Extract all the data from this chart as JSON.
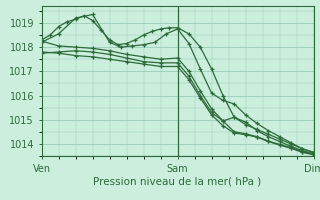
{
  "title": "Pression niveau de la mer( hPa )",
  "bg_color": "#cceedd",
  "plot_bg_color": "#cceedd",
  "grid_color": "#99ccbb",
  "line_color": "#2d6b3a",
  "marker_color": "#2d6b3a",
  "spine_color": "#2d6b3a",
  "tick_color": "#2d6b3a",
  "label_color": "#2d6b3a",
  "ylim": [
    1013.5,
    1019.7
  ],
  "yticks": [
    1014,
    1015,
    1016,
    1017,
    1018,
    1019
  ],
  "xtick_labels": [
    "Ven",
    "Sam",
    "Dim"
  ],
  "xtick_positions": [
    0,
    48,
    96
  ],
  "x_max": 96,
  "series": [
    [
      0,
      1018.3,
      3,
      1018.5,
      6,
      1018.85,
      9,
      1019.05,
      12,
      1019.15,
      15,
      1019.3,
      18,
      1019.1,
      21,
      1018.7,
      24,
      1018.3,
      27,
      1018.1,
      30,
      1018.15,
      33,
      1018.3,
      36,
      1018.5,
      39,
      1018.65,
      42,
      1018.75,
      45,
      1018.8,
      48,
      1018.8,
      52,
      1018.55,
      56,
      1018.0,
      60,
      1017.1,
      64,
      1016.0,
      68,
      1015.1,
      72,
      1014.8,
      76,
      1014.6,
      80,
      1014.4,
      84,
      1014.2,
      88,
      1014.0,
      92,
      1013.8,
      96,
      1013.65
    ],
    [
      0,
      1018.2,
      6,
      1018.55,
      12,
      1019.2,
      18,
      1019.35,
      24,
      1018.2,
      28,
      1018.0,
      32,
      1018.05,
      36,
      1018.1,
      40,
      1018.2,
      44,
      1018.55,
      48,
      1018.75,
      52,
      1018.15,
      56,
      1017.1,
      60,
      1016.1,
      64,
      1015.8,
      68,
      1015.65,
      72,
      1015.2,
      76,
      1014.85,
      80,
      1014.55,
      84,
      1014.3,
      88,
      1014.05,
      92,
      1013.8,
      96,
      1013.65
    ],
    [
      0,
      1017.75,
      6,
      1017.8,
      12,
      1017.85,
      18,
      1017.8,
      24,
      1017.7,
      30,
      1017.55,
      36,
      1017.4,
      42,
      1017.35,
      48,
      1017.35,
      52,
      1016.8,
      56,
      1016.0,
      60,
      1015.3,
      64,
      1014.95,
      68,
      1015.1,
      72,
      1014.9,
      76,
      1014.55,
      80,
      1014.3,
      84,
      1014.1,
      88,
      1013.9,
      92,
      1013.72,
      96,
      1013.6
    ],
    [
      0,
      1017.8,
      6,
      1017.75,
      12,
      1017.65,
      18,
      1017.6,
      24,
      1017.5,
      30,
      1017.4,
      36,
      1017.3,
      42,
      1017.2,
      48,
      1017.2,
      52,
      1016.65,
      56,
      1015.9,
      60,
      1015.2,
      64,
      1014.75,
      68,
      1014.45,
      72,
      1014.38,
      76,
      1014.28,
      80,
      1014.1,
      84,
      1013.95,
      88,
      1013.82,
      92,
      1013.65,
      96,
      1013.55
    ],
    [
      0,
      1018.25,
      6,
      1018.05,
      12,
      1018.0,
      18,
      1017.95,
      24,
      1017.85,
      30,
      1017.7,
      36,
      1017.6,
      42,
      1017.5,
      48,
      1017.55,
      52,
      1017.0,
      56,
      1016.2,
      60,
      1015.45,
      64,
      1014.95,
      68,
      1014.5,
      72,
      1014.42,
      76,
      1014.3,
      80,
      1014.12,
      84,
      1013.98,
      88,
      1013.85,
      92,
      1013.68,
      96,
      1013.58
    ]
  ]
}
